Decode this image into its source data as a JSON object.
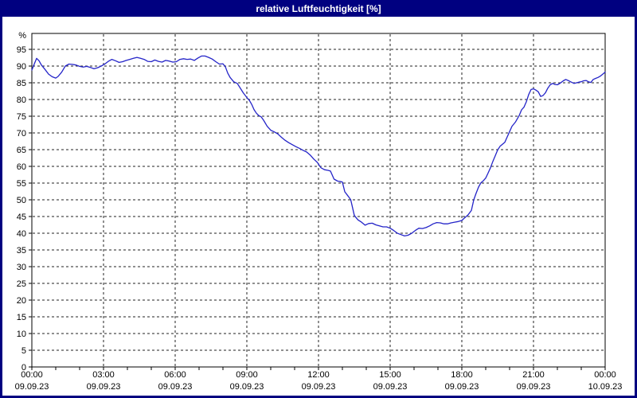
{
  "window": {
    "title": "relative Luftfeuchtigkeit [%]",
    "titlebar_color": "#000080",
    "border_color": "#000080",
    "background_color": "#ffffff"
  },
  "chart_data": {
    "type": "line",
    "title": "relative Luftfeuchtigkeit [%]",
    "ylabel": "%",
    "ylim": [
      0,
      100
    ],
    "y_tick_step": 5,
    "y_ticks": [
      0,
      5,
      10,
      15,
      20,
      25,
      30,
      35,
      40,
      45,
      50,
      55,
      60,
      65,
      70,
      75,
      80,
      85,
      90,
      95
    ],
    "grid": true,
    "grid_color": "#222222",
    "axis_color": "#000000",
    "line_color": "#2424c8",
    "x_axis": {
      "hours_span": 24,
      "major_tick_hours": 3,
      "minor_tick_hours": 1,
      "tick_labels": [
        {
          "time": "00:00",
          "date": "09.09.23"
        },
        {
          "time": "03:00",
          "date": "09.09.23"
        },
        {
          "time": "06:00",
          "date": "09.09.23"
        },
        {
          "time": "09:00",
          "date": "09.09.23"
        },
        {
          "time": "12:00",
          "date": "09.09.23"
        },
        {
          "time": "15:00",
          "date": "09.09.23"
        },
        {
          "time": "18:00",
          "date": "09.09.23"
        },
        {
          "time": "21:00",
          "date": "09.09.23"
        },
        {
          "time": "00:00",
          "date": "10.09.23"
        }
      ]
    },
    "series": [
      {
        "name": "relative Luftfeuchtigkeit",
        "unit": "%",
        "points": [
          [
            0.0,
            88.8
          ],
          [
            0.1,
            90.6
          ],
          [
            0.2,
            92.3
          ],
          [
            0.3,
            91.6
          ],
          [
            0.4,
            90.3
          ],
          [
            0.55,
            89.0
          ],
          [
            0.7,
            87.6
          ],
          [
            0.85,
            86.8
          ],
          [
            1.0,
            86.4
          ],
          [
            1.1,
            86.9
          ],
          [
            1.25,
            88.2
          ],
          [
            1.4,
            90.0
          ],
          [
            1.55,
            90.6
          ],
          [
            1.7,
            90.5
          ],
          [
            1.85,
            90.3
          ],
          [
            2.0,
            89.9
          ],
          [
            2.15,
            89.7
          ],
          [
            2.3,
            89.9
          ],
          [
            2.45,
            89.6
          ],
          [
            2.6,
            89.2
          ],
          [
            2.75,
            89.5
          ],
          [
            2.9,
            90.0
          ],
          [
            3.05,
            90.6
          ],
          [
            3.2,
            91.4
          ],
          [
            3.35,
            92.0
          ],
          [
            3.5,
            91.6
          ],
          [
            3.65,
            91.1
          ],
          [
            3.8,
            91.3
          ],
          [
            3.95,
            91.7
          ],
          [
            4.1,
            92.0
          ],
          [
            4.25,
            92.3
          ],
          [
            4.4,
            92.6
          ],
          [
            4.55,
            92.3
          ],
          [
            4.7,
            92.0
          ],
          [
            4.85,
            91.4
          ],
          [
            5.0,
            91.3
          ],
          [
            5.15,
            91.8
          ],
          [
            5.3,
            91.4
          ],
          [
            5.45,
            91.2
          ],
          [
            5.6,
            91.7
          ],
          [
            5.75,
            91.5
          ],
          [
            5.9,
            91.2
          ],
          [
            6.05,
            91.3
          ],
          [
            6.2,
            92.0
          ],
          [
            6.35,
            92.2
          ],
          [
            6.5,
            92.0
          ],
          [
            6.65,
            92.1
          ],
          [
            6.8,
            91.7
          ],
          [
            6.95,
            92.4
          ],
          [
            7.1,
            93.0
          ],
          [
            7.25,
            93.0
          ],
          [
            7.4,
            92.6
          ],
          [
            7.55,
            92.1
          ],
          [
            7.7,
            91.3
          ],
          [
            7.85,
            90.6
          ],
          [
            8.0,
            90.7
          ],
          [
            8.1,
            89.8
          ],
          [
            8.2,
            87.9
          ],
          [
            8.3,
            86.6
          ],
          [
            8.45,
            85.3
          ],
          [
            8.6,
            84.8
          ],
          [
            8.7,
            83.7
          ],
          [
            8.85,
            82.0
          ],
          [
            9.0,
            80.6
          ],
          [
            9.1,
            79.8
          ],
          [
            9.2,
            78.6
          ],
          [
            9.3,
            77.0
          ],
          [
            9.4,
            75.9
          ],
          [
            9.5,
            75.2
          ],
          [
            9.6,
            74.8
          ],
          [
            9.7,
            73.8
          ],
          [
            9.85,
            72.0
          ],
          [
            10.0,
            70.8
          ],
          [
            10.15,
            70.3
          ],
          [
            10.3,
            69.7
          ],
          [
            10.45,
            68.7
          ],
          [
            10.6,
            67.8
          ],
          [
            10.75,
            67.1
          ],
          [
            10.9,
            66.5
          ],
          [
            11.05,
            65.9
          ],
          [
            11.2,
            65.4
          ],
          [
            11.35,
            64.8
          ],
          [
            11.5,
            64.3
          ],
          [
            11.65,
            63.4
          ],
          [
            11.8,
            62.2
          ],
          [
            11.95,
            61.2
          ],
          [
            12.1,
            59.6
          ],
          [
            12.25,
            59.0
          ],
          [
            12.4,
            58.8
          ],
          [
            12.5,
            58.6
          ],
          [
            12.65,
            56.2
          ],
          [
            12.8,
            55.6
          ],
          [
            12.95,
            55.4
          ],
          [
            13.0,
            55.3
          ],
          [
            13.1,
            52.4
          ],
          [
            13.25,
            51.0
          ],
          [
            13.35,
            50.0
          ],
          [
            13.5,
            45.3
          ],
          [
            13.65,
            44.0
          ],
          [
            13.8,
            43.3
          ],
          [
            13.95,
            42.4
          ],
          [
            14.1,
            42.9
          ],
          [
            14.25,
            43.0
          ],
          [
            14.4,
            42.5
          ],
          [
            14.55,
            42.2
          ],
          [
            14.7,
            41.9
          ],
          [
            14.85,
            41.9
          ],
          [
            15.0,
            41.5
          ],
          [
            15.15,
            40.8
          ],
          [
            15.3,
            40.0
          ],
          [
            15.45,
            39.6
          ],
          [
            15.6,
            39.2
          ],
          [
            15.75,
            39.4
          ],
          [
            15.9,
            40.0
          ],
          [
            16.05,
            40.8
          ],
          [
            16.2,
            41.5
          ],
          [
            16.35,
            41.4
          ],
          [
            16.5,
            41.7
          ],
          [
            16.65,
            42.2
          ],
          [
            16.8,
            42.8
          ],
          [
            16.95,
            43.2
          ],
          [
            17.1,
            43.1
          ],
          [
            17.25,
            42.8
          ],
          [
            17.4,
            42.8
          ],
          [
            17.55,
            43.1
          ],
          [
            17.7,
            43.3
          ],
          [
            17.85,
            43.5
          ],
          [
            18.0,
            43.8
          ],
          [
            18.1,
            44.5
          ],
          [
            18.25,
            45.4
          ],
          [
            18.4,
            46.8
          ],
          [
            18.5,
            50.0
          ],
          [
            18.6,
            52.0
          ],
          [
            18.7,
            53.8
          ],
          [
            18.8,
            55.1
          ],
          [
            18.9,
            55.7
          ],
          [
            19.0,
            56.5
          ],
          [
            19.1,
            58.0
          ],
          [
            19.2,
            59.6
          ],
          [
            19.3,
            61.5
          ],
          [
            19.4,
            63.2
          ],
          [
            19.5,
            64.9
          ],
          [
            19.6,
            66.0
          ],
          [
            19.7,
            66.6
          ],
          [
            19.8,
            67.2
          ],
          [
            19.9,
            68.8
          ],
          [
            20.0,
            70.4
          ],
          [
            20.1,
            72.0
          ],
          [
            20.25,
            73.3
          ],
          [
            20.4,
            75.2
          ],
          [
            20.5,
            76.9
          ],
          [
            20.6,
            77.7
          ],
          [
            20.7,
            79.3
          ],
          [
            20.8,
            81.5
          ],
          [
            20.9,
            83.0
          ],
          [
            21.0,
            83.2
          ],
          [
            21.1,
            82.8
          ],
          [
            21.2,
            82.3
          ],
          [
            21.3,
            80.9
          ],
          [
            21.4,
            81.2
          ],
          [
            21.5,
            82.0
          ],
          [
            21.6,
            83.4
          ],
          [
            21.7,
            84.4
          ],
          [
            21.8,
            84.8
          ],
          [
            21.9,
            84.5
          ],
          [
            22.0,
            84.4
          ],
          [
            22.1,
            84.8
          ],
          [
            22.25,
            85.6
          ],
          [
            22.35,
            86.0
          ],
          [
            22.45,
            85.7
          ],
          [
            22.55,
            85.3
          ],
          [
            22.7,
            84.8
          ],
          [
            22.8,
            85.0
          ],
          [
            22.9,
            85.2
          ],
          [
            23.0,
            85.3
          ],
          [
            23.1,
            85.6
          ],
          [
            23.2,
            85.7
          ],
          [
            23.3,
            85.3
          ],
          [
            23.4,
            85.1
          ],
          [
            23.5,
            86.0
          ],
          [
            23.6,
            86.3
          ],
          [
            23.7,
            86.6
          ],
          [
            23.8,
            87.0
          ],
          [
            23.9,
            87.6
          ],
          [
            24.0,
            88.2
          ]
        ]
      }
    ]
  }
}
